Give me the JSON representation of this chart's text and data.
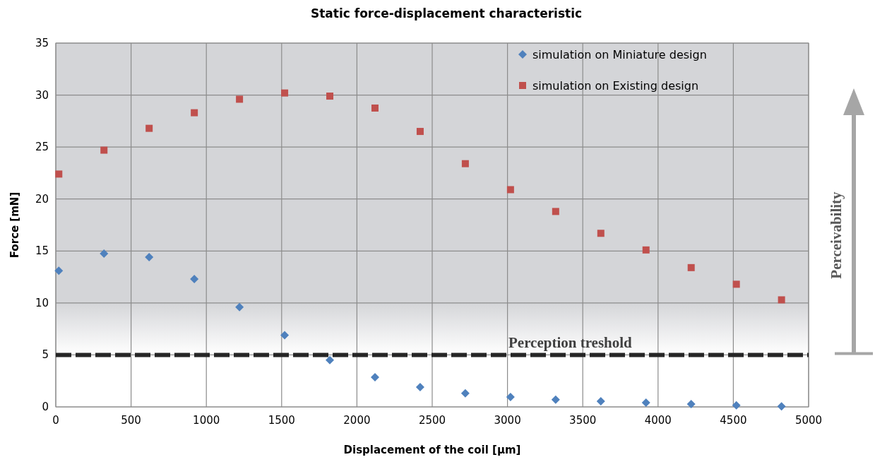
{
  "chart_data": {
    "type": "scatter",
    "title": "Static force-displacement characteristic",
    "xlabel": "Displacement of the coil [μm]",
    "ylabel": "Force [mN]",
    "xlim": [
      0,
      5000
    ],
    "xticks": [
      0,
      500,
      1000,
      1500,
      2000,
      2500,
      3000,
      3500,
      4000,
      4500,
      5000
    ],
    "ylim": [
      0,
      35
    ],
    "yticks": [
      0,
      5,
      10,
      15,
      20,
      25,
      30,
      35
    ],
    "x": [
      20,
      320,
      620,
      920,
      1220,
      1520,
      1820,
      2120,
      2420,
      2720,
      3020,
      3320,
      3620,
      3920,
      4220,
      4520,
      4820
    ],
    "series": [
      {
        "name": "simulation on Miniature design",
        "color": "#4f81bd",
        "marker": "diamond",
        "values": [
          13.1,
          14.75,
          14.4,
          12.3,
          9.6,
          6.9,
          4.5,
          2.85,
          1.9,
          1.3,
          0.95,
          0.7,
          0.55,
          0.4,
          0.27,
          0.15,
          0.05
        ]
      },
      {
        "name": "simulation on Existing design",
        "color": "#c0504d",
        "marker": "square",
        "values": [
          22.4,
          24.7,
          26.8,
          28.3,
          29.6,
          30.2,
          29.9,
          28.75,
          26.5,
          23.4,
          20.9,
          18.8,
          16.7,
          15.1,
          13.4,
          11.8,
          10.3
        ]
      }
    ],
    "ref_lines": [
      {
        "axis": "y",
        "value": 5,
        "label": "Perception treshold",
        "color": "#262626",
        "line_style": "dashed"
      }
    ],
    "bands": [
      {
        "axis": "y",
        "from": 5,
        "to": 35,
        "color": "#d4d5d8"
      }
    ],
    "annotations": [
      "Perceivability"
    ],
    "grid": true,
    "legend": "top right"
  }
}
